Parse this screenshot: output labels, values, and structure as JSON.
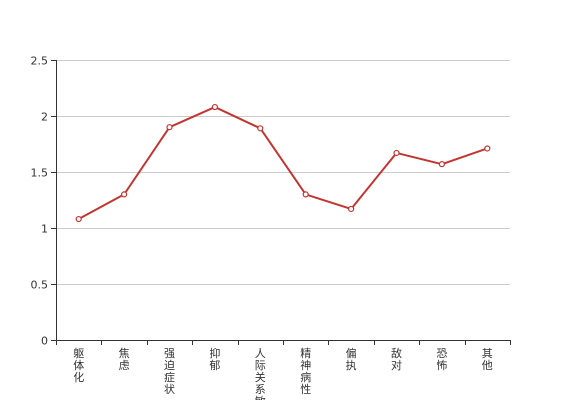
{
  "chart_data": {
    "type": "line",
    "title": "",
    "xlabel": "",
    "ylabel": "",
    "categories": [
      "躯体化",
      "焦虑",
      "强迫症状",
      "抑郁",
      "人际关系敏感",
      "精神病性",
      "偏执",
      "敌对",
      "恐怖",
      "其他"
    ],
    "series": [
      {
        "values": [
          1.08,
          1.3,
          1.9,
          2.08,
          1.89,
          1.3,
          1.17,
          1.67,
          1.57,
          1.71
        ]
      }
    ],
    "ylim": [
      0,
      2.5
    ],
    "yticks": [
      0,
      0.5,
      1,
      1.5,
      2,
      2.5
    ],
    "ytick_labels": [
      "0",
      "0.5",
      "1",
      "1.5",
      "2",
      "2.5"
    ],
    "grid": true,
    "legend": "none",
    "colors": {
      "line": "#c23531",
      "grid": "#cccccc",
      "axis": "#333333"
    }
  }
}
